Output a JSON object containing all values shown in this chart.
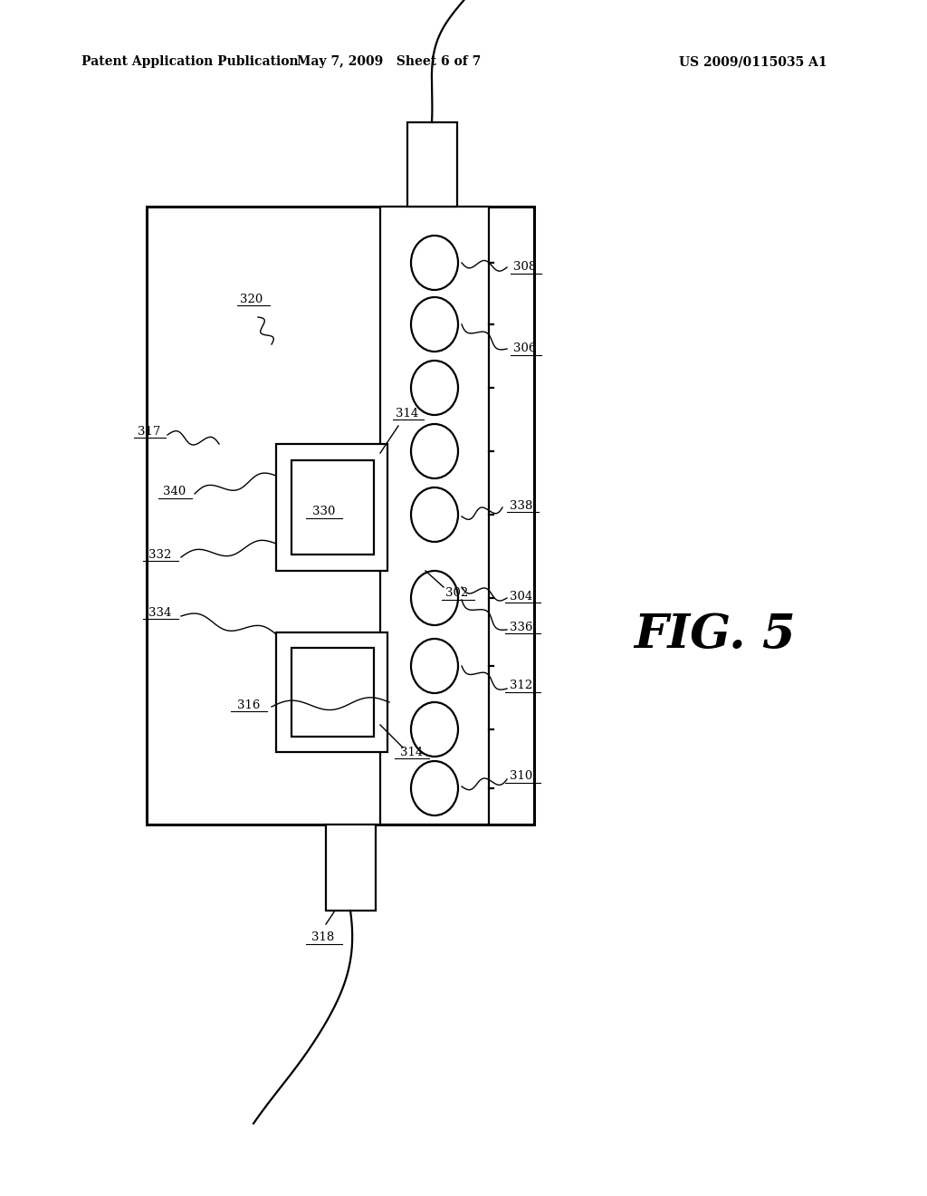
{
  "bg_color": "#ffffff",
  "title_left": "Patent Application Publication",
  "title_mid": "May 7, 2009   Sheet 6 of 7",
  "title_right": "US 2009/0115035 A1",
  "fig_label": "FIG. 5",
  "lw": 1.6,
  "lw_thick": 2.2
}
